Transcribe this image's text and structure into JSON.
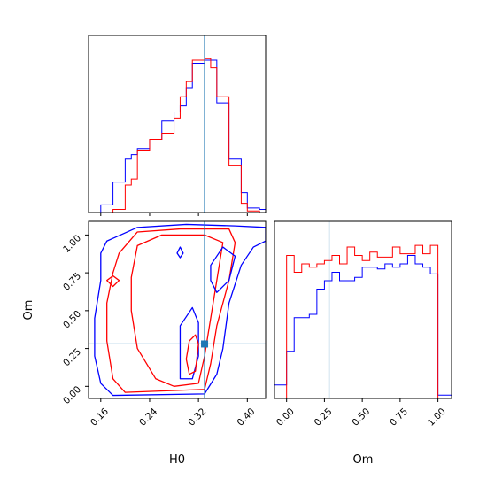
{
  "chart_data": [
    {
      "panel": "H0 marginal",
      "type": "histogram",
      "colors": {
        "series_a": "#ff0000",
        "series_b": "#0000ff",
        "truth": "#1f77b4"
      },
      "truth_x": 0.33,
      "series": [
        {
          "color": "#0000ff",
          "edges": [
            0.14,
            0.15,
            0.16,
            0.17,
            0.18,
            0.19,
            0.2,
            0.21,
            0.22,
            0.23,
            0.24,
            0.25,
            0.26,
            0.27,
            0.28,
            0.29,
            0.3,
            0.31,
            0.32,
            0.33,
            0.34,
            0.35,
            0.36,
            0.37,
            0.38,
            0.39,
            0.4,
            0.41,
            0.42,
            0.43,
            0.44
          ],
          "counts": [
            0,
            0,
            0.05,
            0.05,
            0.2,
            0.2,
            0.35,
            0.38,
            0.42,
            0.42,
            0.48,
            0.48,
            0.6,
            0.6,
            0.66,
            0.7,
            0.82,
            0.98,
            0.98,
            1.0,
            1.0,
            0.72,
            0.72,
            0.35,
            0.35,
            0.13,
            0.03,
            0.03,
            0.02,
            0
          ]
        },
        {
          "color": "#ff0000",
          "edges": [
            0.14,
            0.15,
            0.16,
            0.17,
            0.18,
            0.19,
            0.2,
            0.21,
            0.22,
            0.23,
            0.24,
            0.25,
            0.26,
            0.27,
            0.28,
            0.29,
            0.3,
            0.31,
            0.32,
            0.33,
            0.34,
            0.35,
            0.36,
            0.37,
            0.38,
            0.39,
            0.4,
            0.41,
            0.42,
            0.43,
            0.44
          ],
          "counts": [
            0,
            0,
            0,
            0,
            0.02,
            0.02,
            0.18,
            0.22,
            0.41,
            0.41,
            0.48,
            0.48,
            0.52,
            0.52,
            0.62,
            0.76,
            0.86,
            1.0,
            1.0,
            1.01,
            0.95,
            0.76,
            0.76,
            0.31,
            0.31,
            0.06,
            0.01,
            0.01,
            0,
            0
          ]
        }
      ]
    },
    {
      "panel": "H0 vs Om",
      "type": "contour",
      "xlabel": "H0",
      "ylabel": "Om",
      "xlim": [
        0.14,
        0.43
      ],
      "ylim": [
        -0.08,
        1.09
      ],
      "xticks": [
        "0.16",
        "0.24",
        "0.32",
        "0.40"
      ],
      "yticks": [
        "0.00",
        "0.25",
        "0.50",
        "0.75",
        "1.00"
      ],
      "truth": {
        "H0": 0.33,
        "Om": 0.28
      },
      "colors": {
        "series_a": "#ff0000",
        "series_b": "#0000ff",
        "truth": "#1f77b4"
      },
      "contours": [
        {
          "color": "#0000ff",
          "points": [
            [
              0.17,
              0.96
            ],
            [
              0.22,
              1.05
            ],
            [
              0.3,
              1.07
            ],
            [
              0.38,
              1.06
            ],
            [
              0.43,
              1.05
            ],
            [
              0.43,
              0.96
            ],
            [
              0.41,
              0.92
            ],
            [
              0.39,
              0.8
            ],
            [
              0.37,
              0.55
            ],
            [
              0.36,
              0.25
            ],
            [
              0.35,
              0.08
            ],
            [
              0.33,
              -0.05
            ],
            [
              0.18,
              -0.06
            ],
            [
              0.16,
              0.02
            ],
            [
              0.15,
              0.2
            ],
            [
              0.15,
              0.45
            ],
            [
              0.16,
              0.7
            ],
            [
              0.16,
              0.88
            ]
          ]
        },
        {
          "color": "#ff0000",
          "points": [
            [
              0.19,
              0.88
            ],
            [
              0.22,
              1.02
            ],
            [
              0.29,
              1.04
            ],
            [
              0.37,
              1.04
            ],
            [
              0.38,
              0.95
            ],
            [
              0.37,
              0.7
            ],
            [
              0.35,
              0.4
            ],
            [
              0.34,
              0.15
            ],
            [
              0.33,
              -0.02
            ],
            [
              0.2,
              -0.04
            ],
            [
              0.18,
              0.05
            ],
            [
              0.17,
              0.3
            ],
            [
              0.17,
              0.55
            ],
            [
              0.18,
              0.75
            ]
          ]
        },
        {
          "color": "#ff0000",
          "points": [
            [
              0.22,
              0.93
            ],
            [
              0.26,
              1.0
            ],
            [
              0.33,
              1.0
            ],
            [
              0.36,
              0.95
            ],
            [
              0.35,
              0.7
            ],
            [
              0.34,
              0.45
            ],
            [
              0.33,
              0.2
            ],
            [
              0.32,
              0.02
            ],
            [
              0.28,
              0.0
            ],
            [
              0.25,
              0.05
            ],
            [
              0.22,
              0.25
            ],
            [
              0.21,
              0.5
            ],
            [
              0.21,
              0.72
            ]
          ]
        },
        {
          "color": "#0000ff",
          "points": [
            [
              0.29,
              0.4
            ],
            [
              0.31,
              0.52
            ],
            [
              0.32,
              0.42
            ],
            [
              0.32,
              0.2
            ],
            [
              0.31,
              0.05
            ],
            [
              0.29,
              0.05
            ],
            [
              0.29,
              0.2
            ]
          ]
        },
        {
          "color": "#ff0000",
          "points": [
            [
              0.305,
              0.3
            ],
            [
              0.315,
              0.34
            ],
            [
              0.32,
              0.28
            ],
            [
              0.315,
              0.1
            ],
            [
              0.305,
              0.08
            ],
            [
              0.3,
              0.18
            ]
          ]
        },
        {
          "color": "#0000ff",
          "points": [
            [
              0.34,
              0.8
            ],
            [
              0.36,
              0.92
            ],
            [
              0.38,
              0.86
            ],
            [
              0.37,
              0.7
            ],
            [
              0.35,
              0.62
            ],
            [
              0.34,
              0.7
            ]
          ]
        },
        {
          "color": "#ff0000",
          "points": [
            [
              0.17,
              0.7
            ],
            [
              0.18,
              0.73
            ],
            [
              0.19,
              0.7
            ],
            [
              0.18,
              0.66
            ]
          ]
        },
        {
          "color": "#0000ff",
          "points": [
            [
              0.285,
              0.88
            ],
            [
              0.29,
              0.92
            ],
            [
              0.295,
              0.88
            ],
            [
              0.29,
              0.85
            ]
          ]
        }
      ]
    },
    {
      "panel": "Om marginal",
      "type": "histogram",
      "xlabel": "Om",
      "xlim": [
        -0.08,
        1.09
      ],
      "xticks": [
        "0.00",
        "0.25",
        "0.50",
        "0.75",
        "1.00"
      ],
      "truth_x": 0.28,
      "colors": {
        "series_a": "#ff0000",
        "series_b": "#0000ff",
        "truth": "#1f77b4"
      },
      "series": [
        {
          "color": "#0000ff",
          "edges": [
            -0.08,
            0,
            0.05,
            0.1,
            0.15,
            0.2,
            0.25,
            0.3,
            0.35,
            0.4,
            0.45,
            0.5,
            0.55,
            0.6,
            0.65,
            0.7,
            0.75,
            0.8,
            0.85,
            0.9,
            0.95,
            1.0,
            1.05,
            1.09
          ],
          "counts": [
            0.08,
            0.28,
            0.48,
            0.48,
            0.5,
            0.65,
            0.7,
            0.75,
            0.7,
            0.7,
            0.72,
            0.78,
            0.78,
            0.77,
            0.8,
            0.78,
            0.8,
            0.85,
            0.8,
            0.78,
            0.74,
            0.02,
            0.02
          ]
        },
        {
          "color": "#ff0000",
          "edges": [
            0,
            0.05,
            0.1,
            0.15,
            0.2,
            0.25,
            0.3,
            0.35,
            0.4,
            0.45,
            0.5,
            0.55,
            0.6,
            0.65,
            0.7,
            0.75,
            0.8,
            0.85,
            0.9,
            0.95,
            1.0
          ],
          "counts": [
            0.85,
            0.75,
            0.8,
            0.78,
            0.8,
            0.82,
            0.85,
            0.8,
            0.9,
            0.85,
            0.82,
            0.87,
            0.84,
            0.84,
            0.9,
            0.86,
            0.86,
            0.91,
            0.86,
            0.91
          ]
        }
      ]
    }
  ]
}
